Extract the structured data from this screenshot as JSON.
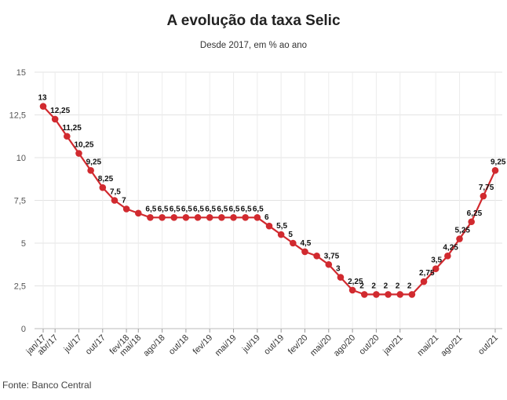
{
  "chart_data": {
    "type": "line",
    "title": "A evolução da taxa Selic",
    "subtitle": "Desde 2017, em % ao ano",
    "source": "Fonte: Banco Central",
    "ylim": [
      0,
      15
    ],
    "y_ticks": [
      0,
      2.5,
      5,
      7.5,
      10,
      12.5,
      15
    ],
    "y_tick_labels": [
      "0",
      "2,5",
      "5",
      "7,5",
      "10",
      "12,5",
      "15"
    ],
    "x_tick_labels": [
      "jan/17",
      "abr/17",
      "jul/17",
      "out/17",
      "fev/18",
      "mai/18",
      "ago/18",
      "out/18",
      "fev/19",
      "mai/19",
      "jul/19",
      "out/19",
      "fev/20",
      "mai/20",
      "ago/20",
      "out/20",
      "jan/21",
      "mai/21",
      "ago/21",
      "out/21"
    ],
    "x_tick_index": [
      0,
      1,
      3,
      5,
      7,
      8,
      10,
      12,
      14,
      16,
      18,
      20,
      22,
      24,
      26,
      28,
      30,
      33,
      35,
      38
    ],
    "grid": true,
    "line_color": "#d12a2f",
    "series": [
      {
        "values": [
          13,
          12.25,
          11.25,
          10.25,
          9.25,
          8.25,
          7.5,
          7,
          6.75,
          6.5,
          6.5,
          6.5,
          6.5,
          6.5,
          6.5,
          6.5,
          6.5,
          6.5,
          6.5,
          6,
          5.5,
          5,
          4.5,
          4.25,
          3.75,
          3,
          2.25,
          2,
          2,
          2,
          2,
          2,
          2.75,
          3.5,
          4.25,
          5.25,
          6.25,
          7.75,
          9.25
        ],
        "labels": [
          "13",
          "12,25",
          "11,25",
          "10,25",
          "9,25",
          "8,25",
          "7,5",
          "7",
          "",
          "6,5",
          "6,5",
          "6,5",
          "6,5",
          "6,5",
          "6,5",
          "6,5",
          "6,5",
          "6,5",
          "6,5",
          "6",
          "5,5",
          "5",
          "4,5",
          "",
          "3,75",
          "3",
          "2,25",
          "2",
          "2",
          "2",
          "2",
          "2",
          "2,75",
          "3,5",
          "4,25",
          "5,25",
          "6,25",
          "7,75",
          "9,25"
        ]
      }
    ]
  }
}
